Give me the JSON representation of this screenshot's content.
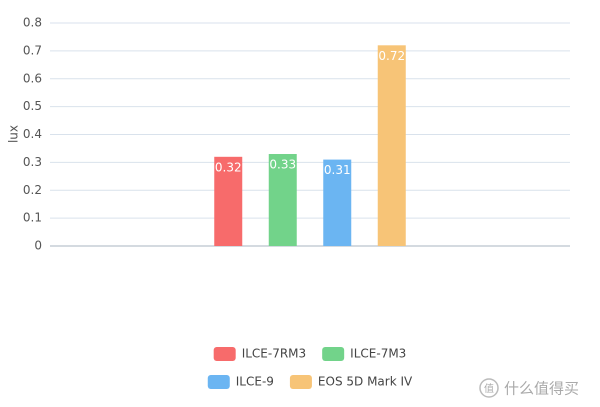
{
  "chart_data": {
    "type": "bar",
    "y_label": "lux",
    "categories": [
      null
    ],
    "series": [
      {
        "name": "ILCE-7RM3",
        "color": "#f76b6b",
        "values": [
          0.32
        ]
      },
      {
        "name": "ILCE-7M3",
        "color": "#72d38a",
        "values": [
          0.33
        ]
      },
      {
        "name": "ILCE-9",
        "color": "#6bb5f2",
        "values": [
          0.31
        ]
      },
      {
        "name": "EOS 5D Mark IV",
        "color": "#f7c477",
        "values": [
          0.72
        ]
      }
    ],
    "ylim": [
      0,
      0.8
    ],
    "yticks": [
      0,
      0.1,
      0.2,
      0.3,
      0.4,
      0.5,
      0.6,
      0.7,
      0.8
    ],
    "grid": true,
    "legend_position": "bottom"
  },
  "watermark": {
    "icon": "值",
    "text": "什么值得买"
  }
}
